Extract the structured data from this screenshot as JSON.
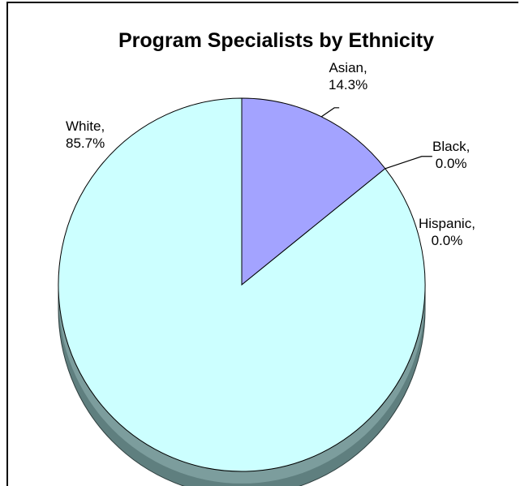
{
  "chart_data": {
    "type": "pie",
    "title": "Program Specialists by Ethnicity",
    "slices": [
      {
        "name": "Asian",
        "value": 14.3,
        "label_name": "Asian,",
        "label_value": "14.3%",
        "color": "#a3a3ff"
      },
      {
        "name": "Black",
        "value": 0.0,
        "label_name": "Black,",
        "label_value": "0.0%",
        "color": "#a3a3ff"
      },
      {
        "name": "Hispanic",
        "value": 0.0,
        "label_name": "Hispanic,",
        "label_value": "0.0%",
        "color": "#ccffff"
      },
      {
        "name": "White",
        "value": 85.7,
        "label_name": "White,",
        "label_value": "85.7%",
        "color": "#ccffff"
      }
    ],
    "style": "3d-pie",
    "legend": "none"
  }
}
